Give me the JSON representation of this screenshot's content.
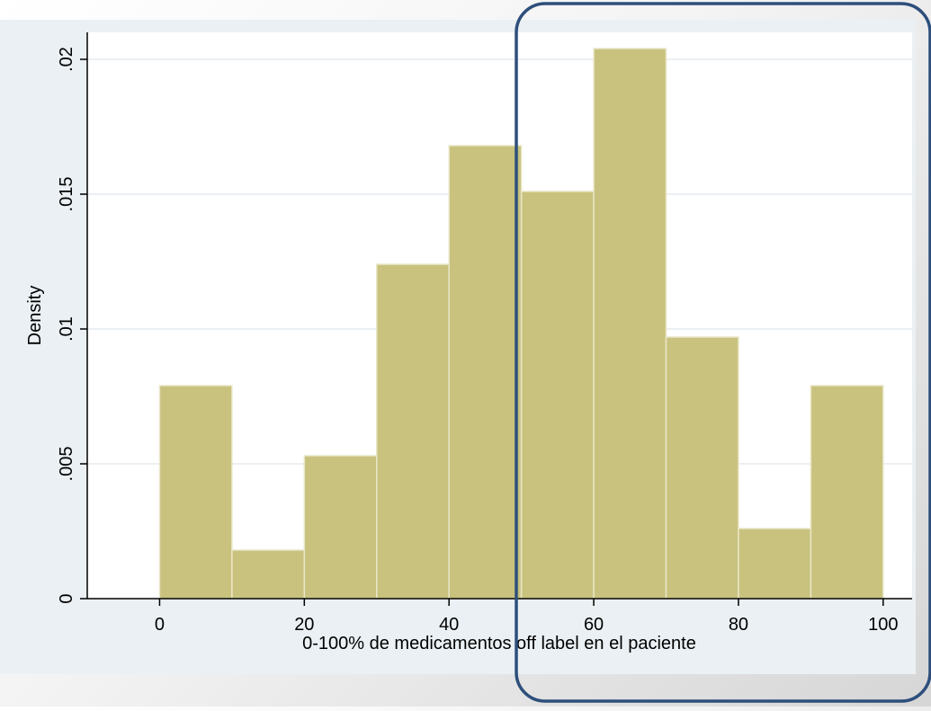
{
  "chart_data": {
    "type": "bar",
    "subtype": "histogram",
    "xlabel": "0-100% de medicamentos off label en el paciente",
    "ylabel": "Density",
    "bins": [
      {
        "from": 0,
        "to": 10,
        "density": 0.0079
      },
      {
        "from": 10,
        "to": 20,
        "density": 0.0018
      },
      {
        "from": 20,
        "to": 30,
        "density": 0.0053
      },
      {
        "from": 30,
        "to": 40,
        "density": 0.0124
      },
      {
        "from": 40,
        "to": 50,
        "density": 0.0168
      },
      {
        "from": 50,
        "to": 60,
        "density": 0.0151
      },
      {
        "from": 60,
        "to": 70,
        "density": 0.0204
      },
      {
        "from": 70,
        "to": 80,
        "density": 0.0097
      },
      {
        "from": 80,
        "to": 90,
        "density": 0.0026
      },
      {
        "from": 90,
        "to": 100,
        "density": 0.0079
      }
    ],
    "xlim": [
      -10,
      104
    ],
    "ylim": [
      0,
      0.021
    ],
    "x_ticks": [
      {
        "value": 0,
        "label": "0"
      },
      {
        "value": 20,
        "label": "20"
      },
      {
        "value": 40,
        "label": "40"
      },
      {
        "value": 60,
        "label": "60"
      },
      {
        "value": 80,
        "label": "80"
      },
      {
        "value": 100,
        "label": "100"
      }
    ],
    "y_ticks": [
      {
        "value": 0,
        "label": "0"
      },
      {
        "value": 0.005,
        "label": ".005"
      },
      {
        "value": 0.01,
        "label": ".01"
      },
      {
        "value": 0.015,
        "label": ".015"
      },
      {
        "value": 0.02,
        "label": ".02"
      }
    ],
    "grid": "horizontal",
    "highlight": {
      "from": 50,
      "to": 100,
      "color": "#2e4f7c"
    },
    "colors": {
      "bar_fill": "#c9c27e",
      "bar_stroke": "#e9e6c8",
      "plot_background": "#ffffff",
      "frame_background": "#eaf0f3",
      "grid": "#e6ecef",
      "axis": "#000000"
    }
  }
}
